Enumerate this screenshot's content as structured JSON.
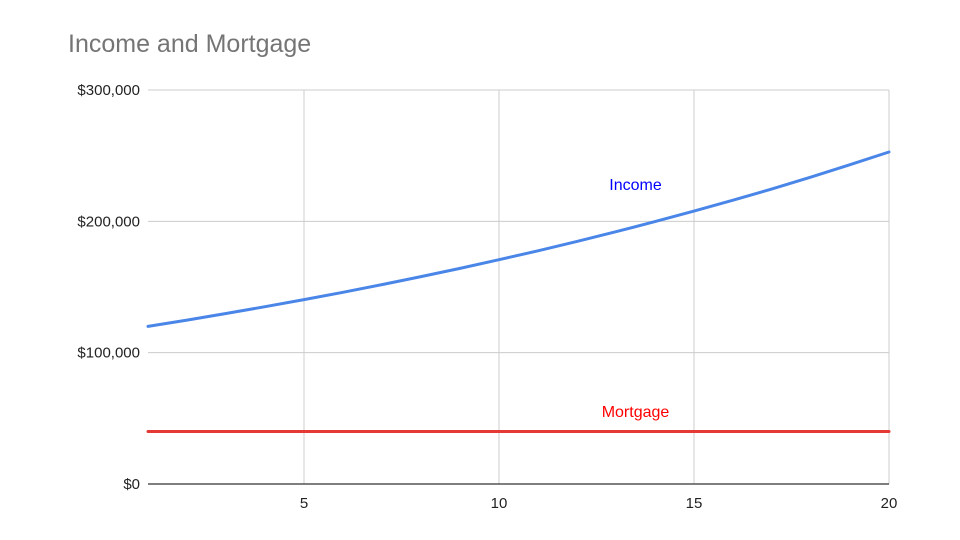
{
  "chart_data": {
    "type": "line",
    "title": "Income and Mortgage",
    "xlabel": "",
    "ylabel": "",
    "xlim": [
      1,
      20
    ],
    "ylim": [
      0,
      300000
    ],
    "x_ticks": [
      "5",
      "10",
      "15",
      "20"
    ],
    "x_tick_values": [
      5,
      10,
      15,
      20
    ],
    "y_ticks": [
      "$0",
      "$100,000",
      "$200,000",
      "$300,000"
    ],
    "y_tick_values": [
      0,
      100000,
      200000,
      300000
    ],
    "grid": true,
    "legend": "none",
    "x": [
      1,
      2,
      3,
      4,
      5,
      6,
      7,
      8,
      9,
      10,
      11,
      12,
      13,
      14,
      15,
      16,
      17,
      18,
      19,
      20
    ],
    "series": [
      {
        "name": "Income",
        "color": "#4a86e8",
        "label_color": "#0000ff",
        "values": [
          120000,
          124800,
          129800,
          135000,
          140400,
          146000,
          151800,
          157900,
          164200,
          170800,
          177600,
          184700,
          192100,
          199800,
          207800,
          216100,
          224700,
          233700,
          243100,
          252800
        ]
      },
      {
        "name": "Mortgage",
        "color": "#e53935",
        "label_color": "#ff0000",
        "values": [
          40000,
          40000,
          40000,
          40000,
          40000,
          40000,
          40000,
          40000,
          40000,
          40000,
          40000,
          40000,
          40000,
          40000,
          40000,
          40000,
          40000,
          40000,
          40000,
          40000
        ]
      }
    ],
    "annotations": [
      {
        "text": "Income",
        "series": "Income",
        "x": 13.5,
        "y": 224000
      },
      {
        "text": "Mortgage",
        "series": "Mortgage",
        "x": 13.5,
        "y": 51000
      }
    ]
  }
}
